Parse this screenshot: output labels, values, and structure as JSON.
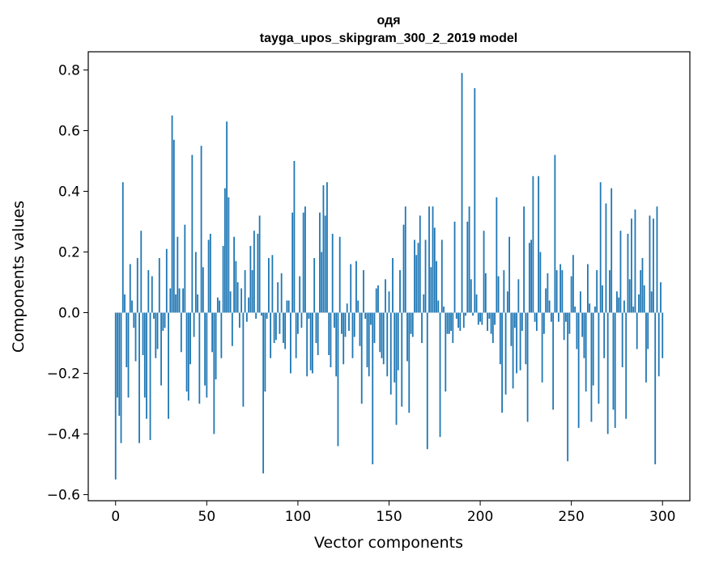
{
  "chart_data": {
    "type": "bar",
    "title": "одя",
    "subtitle": "tayga_upos_skipgram_300_2_2019 model",
    "xlabel": "Vector components",
    "ylabel": "Components values",
    "xlim": [
      -15,
      315
    ],
    "ylim": [
      -0.62,
      0.86
    ],
    "xticks": [
      0,
      50,
      100,
      150,
      200,
      250,
      300
    ],
    "yticks": [
      -0.6,
      -0.4,
      -0.2,
      0.0,
      0.2,
      0.4,
      0.6,
      0.8
    ],
    "xtick_labels": [
      "0",
      "50",
      "100",
      "150",
      "200",
      "250",
      "300"
    ],
    "ytick_labels": [
      "−0.6",
      "−0.4",
      "−0.2",
      "0.0",
      "0.2",
      "0.4",
      "0.6",
      "0.8"
    ],
    "bar_color": "#1f77b4",
    "grid": false,
    "values": [
      -0.55,
      -0.28,
      -0.34,
      -0.43,
      0.43,
      0.06,
      -0.18,
      -0.28,
      0.16,
      0.04,
      -0.05,
      -0.16,
      0.18,
      -0.43,
      0.27,
      -0.14,
      -0.28,
      -0.35,
      0.14,
      -0.42,
      0.12,
      -0.02,
      -0.15,
      -0.12,
      0.18,
      -0.24,
      -0.06,
      -0.05,
      0.21,
      -0.35,
      0.08,
      0.65,
      0.57,
      0.06,
      0.25,
      0.08,
      -0.13,
      0.08,
      0.29,
      -0.26,
      -0.29,
      -0.17,
      0.52,
      -0.08,
      0.2,
      0.06,
      -0.3,
      0.55,
      0.15,
      -0.24,
      -0.28,
      0.24,
      0.26,
      -0.13,
      -0.4,
      -0.22,
      0.05,
      0.04,
      -0.15,
      0.22,
      0.41,
      0.63,
      0.38,
      0.07,
      -0.11,
      0.25,
      0.17,
      0.1,
      -0.05,
      0.08,
      -0.31,
      0.14,
      -0.03,
      0.05,
      0.22,
      0.14,
      0.27,
      -0.02,
      0.26,
      0.32,
      -0.01,
      -0.53,
      -0.26,
      -0.02,
      0.18,
      -0.15,
      0.19,
      -0.1,
      -0.09,
      0.1,
      -0.07,
      0.13,
      -0.1,
      -0.12,
      0.04,
      0.04,
      -0.2,
      0.33,
      0.5,
      -0.15,
      -0.07,
      0.12,
      -0.05,
      0.33,
      0.35,
      -0.21,
      -0.02,
      -0.19,
      -0.2,
      0.18,
      -0.1,
      -0.14,
      0.33,
      0.2,
      0.42,
      0.32,
      0.43,
      -0.14,
      -0.18,
      0.26,
      -0.05,
      -0.21,
      -0.44,
      0.25,
      -0.07,
      -0.17,
      -0.08,
      0.03,
      -0.06,
      0.16,
      -0.15,
      -0.08,
      0.17,
      0.04,
      -0.11,
      -0.3,
      0.14,
      -0.02,
      -0.18,
      -0.21,
      -0.04,
      -0.5,
      -0.1,
      0.08,
      0.09,
      -0.13,
      -0.15,
      -0.17,
      0.11,
      -0.21,
      0.07,
      -0.27,
      0.18,
      -0.23,
      -0.37,
      -0.19,
      0.14,
      -0.31,
      0.29,
      0.35,
      -0.16,
      -0.33,
      -0.07,
      -0.08,
      0.24,
      0.19,
      0.23,
      0.32,
      -0.1,
      0.06,
      0.24,
      -0.45,
      0.35,
      0.15,
      0.35,
      0.28,
      0.17,
      0.04,
      -0.41,
      0.24,
      0.02,
      -0.26,
      -0.07,
      -0.07,
      -0.06,
      -0.1,
      0.3,
      -0.02,
      -0.05,
      -0.06,
      0.79,
      -0.05,
      -0.01,
      0.3,
      0.35,
      0.11,
      -0.01,
      0.74,
      0.06,
      -0.04,
      -0.03,
      -0.04,
      0.27,
      0.13,
      -0.06,
      -0.02,
      -0.07,
      -0.1,
      -0.04,
      0.38,
      0.12,
      -0.17,
      -0.33,
      0.14,
      -0.27,
      0.07,
      0.25,
      -0.11,
      -0.25,
      -0.05,
      -0.2,
      0.11,
      -0.19,
      -0.06,
      0.35,
      -0.17,
      -0.36,
      0.23,
      0.24,
      0.45,
      -0.03,
      -0.06,
      0.45,
      0.2,
      -0.23,
      -0.07,
      0.08,
      0.13,
      0.04,
      -0.03,
      -0.32,
      0.52,
      0.14,
      -0.03,
      0.16,
      0.14,
      -0.09,
      -0.03,
      -0.49,
      -0.07,
      0.12,
      0.19,
      0.02,
      -0.12,
      -0.38,
      0.07,
      -0.08,
      -0.15,
      -0.26,
      0.16,
      0.03,
      -0.36,
      -0.24,
      0.02,
      0.14,
      -0.3,
      0.43,
      0.09,
      -0.15,
      0.36,
      -0.4,
      0.14,
      0.41,
      -0.32,
      -0.38,
      0.07,
      0.05,
      0.27,
      -0.18,
      0.04,
      -0.35,
      0.26,
      0.11,
      0.31,
      0.02,
      0.34,
      -0.12,
      0.06,
      0.14,
      0.18,
      0.09,
      -0.23,
      -0.12,
      0.32,
      0.07,
      0.31,
      -0.5,
      0.35,
      -0.21,
      0.1,
      -0.15
    ]
  }
}
